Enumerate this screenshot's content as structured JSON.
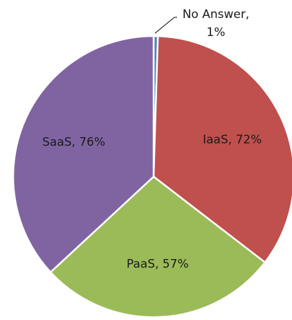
{
  "chart_data": {
    "type": "pie",
    "title": "",
    "start_angle_deg": 0,
    "direction": "clockwise",
    "slices": [
      {
        "label": "No Answer",
        "value": 1,
        "display": "No Answer, 1%",
        "color": "#4f81bd"
      },
      {
        "label": "IaaS",
        "value": 72,
        "display": "IaaS, 72%",
        "color": "#c0504d"
      },
      {
        "label": "PaaS",
        "value": 57,
        "display": "PaaS, 57%",
        "color": "#9bbb59"
      },
      {
        "label": "SaaS",
        "value": 76,
        "display": "SaaS, 76%",
        "color": "#8064a2"
      }
    ],
    "legend": "none"
  }
}
